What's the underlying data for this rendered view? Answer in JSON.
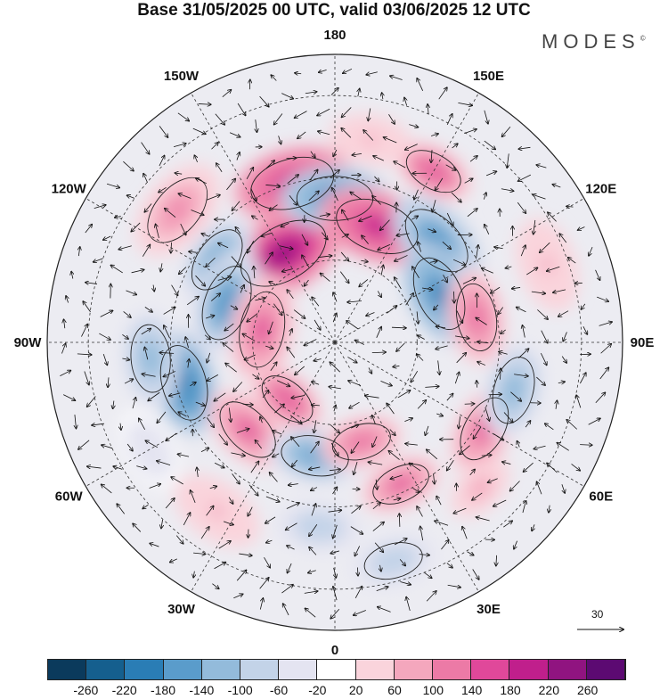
{
  "title": "Base 31/05/2025 00 UTC, valid 03/06/2025 12 UTC",
  "brand": "MODES",
  "brand_mark": "©",
  "longitude_labels": [
    {
      "id": "lon-180",
      "text": "180",
      "angle": 180
    },
    {
      "id": "lon-150e",
      "text": "150E",
      "angle": 150
    },
    {
      "id": "lon-120e",
      "text": "120E",
      "angle": 120
    },
    {
      "id": "lon-90e",
      "text": "90E",
      "angle": 90
    },
    {
      "id": "lon-60e",
      "text": "60E",
      "angle": 60
    },
    {
      "id": "lon-30e",
      "text": "30E",
      "angle": 30
    },
    {
      "id": "lon-0",
      "text": "0",
      "angle": 0
    },
    {
      "id": "lon-30w",
      "text": "30W",
      "angle": -30
    },
    {
      "id": "lon-60w",
      "text": "60W",
      "angle": -60
    },
    {
      "id": "lon-90w",
      "text": "90W",
      "angle": -90
    },
    {
      "id": "lon-120w",
      "text": "120W",
      "angle": -120
    },
    {
      "id": "lon-150w",
      "text": "150W",
      "angle": -150
    }
  ],
  "reference_vector": "30",
  "colorbar": {
    "colors": [
      "#0b3a5c",
      "#155f8e",
      "#2a7db5",
      "#5a9ccb",
      "#93bbdb",
      "#c3d3e8",
      "#e4e4f1",
      "#ffffff",
      "#fad4dc",
      "#f4a7bd",
      "#ec7aa6",
      "#e0489a",
      "#c01f8c",
      "#901480",
      "#5c0a72"
    ],
    "labels": [
      "-260",
      "-220",
      "-180",
      "-140",
      "-100",
      "-60",
      "-20",
      "20",
      "60",
      "100",
      "140",
      "180",
      "220",
      "260"
    ]
  },
  "anomalies": [
    {
      "lon": -165,
      "lat": 50,
      "v": 200,
      "r": 50
    },
    {
      "lon": -150,
      "lat": 65,
      "v": 230,
      "r": 55
    },
    {
      "lon": -180,
      "lat": 55,
      "v": -200,
      "r": 45
    },
    {
      "lon": 160,
      "lat": 60,
      "v": 200,
      "r": 50
    },
    {
      "lon": 150,
      "lat": 42,
      "v": 160,
      "r": 35
    },
    {
      "lon": 135,
      "lat": 55,
      "v": -180,
      "r": 45
    },
    {
      "lon": 115,
      "lat": 62,
      "v": -200,
      "r": 45
    },
    {
      "lon": 100,
      "lat": 55,
      "v": 120,
      "r": 40
    },
    {
      "lon": 60,
      "lat": 48,
      "v": 140,
      "r": 40
    },
    {
      "lon": 75,
      "lat": 45,
      "v": -140,
      "r": 40
    },
    {
      "lon": -125,
      "lat": 55,
      "v": -150,
      "r": 40
    },
    {
      "lon": -110,
      "lat": 62,
      "v": -170,
      "r": 45
    },
    {
      "lon": -100,
      "lat": 72,
      "v": 140,
      "r": 45
    },
    {
      "lon": -75,
      "lat": 52,
      "v": -210,
      "r": 45
    },
    {
      "lon": -85,
      "lat": 45,
      "v": -120,
      "r": 40
    },
    {
      "lon": -45,
      "lat": 60,
      "v": 140,
      "r": 40
    },
    {
      "lon": -40,
      "lat": 72,
      "v": 160,
      "r": 35
    },
    {
      "lon": -10,
      "lat": 62,
      "v": -150,
      "r": 40
    },
    {
      "lon": -5,
      "lat": 45,
      "v": -90,
      "r": 35
    },
    {
      "lon": 15,
      "lat": 65,
      "v": 120,
      "r": 35
    },
    {
      "lon": 25,
      "lat": 52,
      "v": 140,
      "r": 35
    },
    {
      "lon": 45,
      "lat": 40,
      "v": 80,
      "r": 30
    },
    {
      "lon": 15,
      "lat": 35,
      "v": -100,
      "r": 35
    },
    {
      "lon": -130,
      "lat": 40,
      "v": 110,
      "r": 45
    },
    {
      "lon": 110,
      "lat": 35,
      "v": 60,
      "r": 40
    },
    {
      "lon": -35,
      "lat": 40,
      "v": 70,
      "r": 40
    },
    {
      "lon": -60,
      "lat": 38,
      "v": -40,
      "r": 35
    },
    {
      "lon": 170,
      "lat": 40,
      "v": 60,
      "r": 35
    }
  ]
}
